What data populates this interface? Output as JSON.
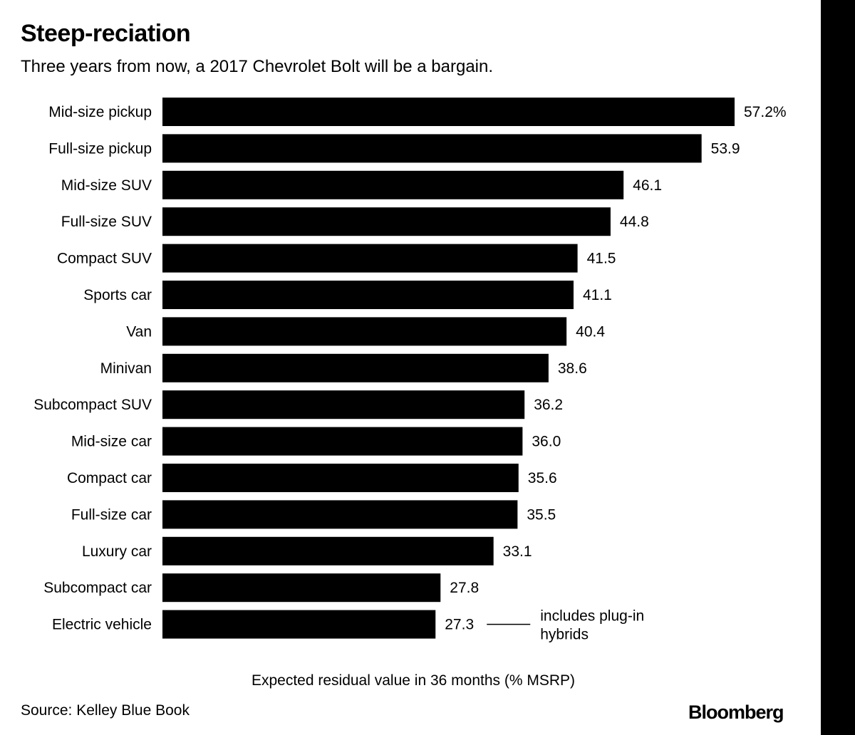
{
  "header": {
    "title": "Steep-reciation",
    "subtitle": "Three years from now, a 2017 Chevrolet Bolt will be a bargain."
  },
  "chart_data": {
    "type": "bar",
    "orientation": "horizontal",
    "categories": [
      "Mid-size pickup",
      "Full-size pickup",
      "Mid-size SUV",
      "Full-size SUV",
      "Compact SUV",
      "Sports car",
      "Van",
      "Minivan",
      "Subcompact SUV",
      "Mid-size car",
      "Compact car",
      "Full-size car",
      "Luxury car",
      "Subcompact car",
      "Electric vehicle"
    ],
    "values": [
      57.2,
      53.9,
      46.1,
      44.8,
      41.5,
      41.1,
      40.4,
      38.6,
      36.2,
      36.0,
      35.6,
      35.5,
      33.1,
      27.8,
      27.3
    ],
    "value_labels": [
      "57.2%",
      "53.9",
      "46.1",
      "44.8",
      "41.5",
      "41.1",
      "40.4",
      "38.6",
      "36.2",
      "36.0",
      "35.6",
      "35.5",
      "33.1",
      "27.8",
      "27.3"
    ],
    "xlabel": "Expected residual value in 36 months (% MSRP)",
    "ylabel": "",
    "xlim": [
      0,
      57.2
    ],
    "grid": false,
    "bar_color": "#000000",
    "annotation": {
      "category": "Electric vehicle",
      "lines": [
        "includes plug-in",
        "hybrids"
      ]
    }
  },
  "footer": {
    "source": "Source: Kelley Blue Book",
    "brand": "Bloomberg"
  }
}
